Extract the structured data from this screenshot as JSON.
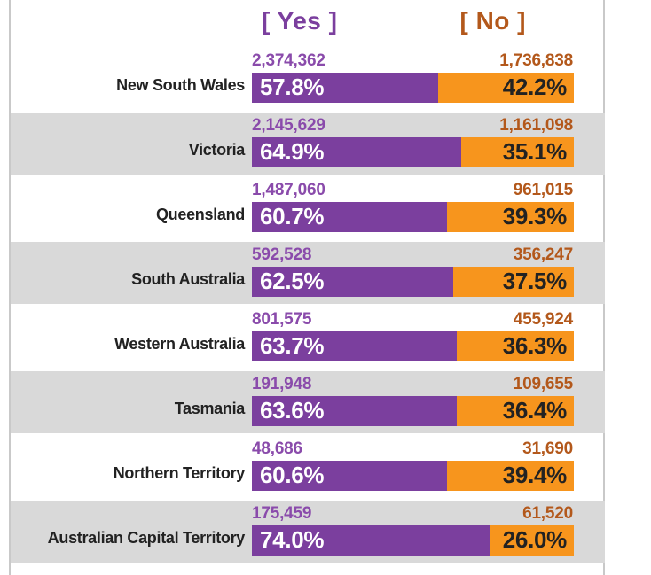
{
  "header": {
    "yes_label": "[ Yes ]",
    "no_label": "[ No ]"
  },
  "colors": {
    "yes": "#7b3f9e",
    "no": "#f7951d",
    "no_text": "#b3581b",
    "row_shade": "#d9d9d9"
  },
  "chart_data": {
    "type": "bar",
    "orientation": "horizontal-stacked-100",
    "categories": [
      "New South Wales",
      "Victoria",
      "Queensland",
      "South Australia",
      "Western Australia",
      "Tasmania",
      "Northern Territory",
      "Australian Capital Territory"
    ],
    "series": [
      {
        "name": "[ Yes ]",
        "counts": [
          "2,374,362",
          "2,145,629",
          "1,487,060",
          "592,528",
          "801,575",
          "191,948",
          "48,686",
          "175,459"
        ],
        "values": [
          57.8,
          64.9,
          60.7,
          62.5,
          63.7,
          63.6,
          60.6,
          74.0
        ],
        "labels": [
          "57.8%",
          "64.9%",
          "60.7%",
          "62.5%",
          "63.7%",
          "63.6%",
          "60.6%",
          "74.0%"
        ]
      },
      {
        "name": "[ No ]",
        "counts": [
          "1,736,838",
          "1,161,098",
          "961,015",
          "356,247",
          "455,924",
          "109,655",
          "31,690",
          "61,520"
        ],
        "values": [
          42.2,
          35.1,
          39.3,
          37.5,
          36.3,
          36.4,
          39.4,
          26.0
        ],
        "labels": [
          "42.2%",
          "35.1%",
          "39.3%",
          "37.5%",
          "36.3%",
          "36.4%",
          "39.4%",
          "26.0%"
        ]
      }
    ],
    "xlim": [
      0,
      100
    ],
    "legend": "top"
  }
}
